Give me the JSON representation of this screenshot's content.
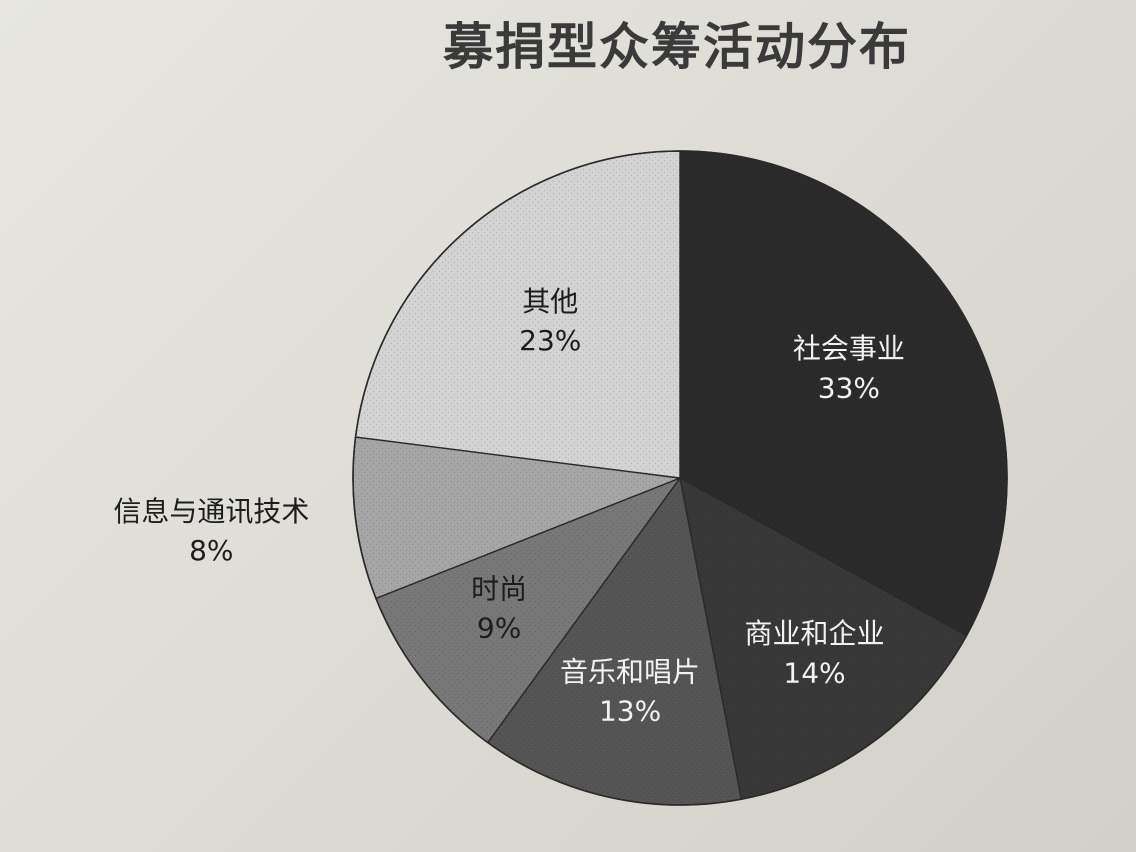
{
  "chart_data": {
    "type": "pie",
    "title": "募捐型众筹活动分布",
    "slices": [
      {
        "label": "社会事业",
        "value": 33,
        "value_label": "33%",
        "color": "#2b2b2b"
      },
      {
        "label": "商业和企业",
        "value": 14,
        "value_label": "14%",
        "color": "#383838"
      },
      {
        "label": "音乐和唱片",
        "value": 13,
        "value_label": "13%",
        "color": "#555555"
      },
      {
        "label": "时尚",
        "value": 9,
        "value_label": "9%",
        "color": "#787878"
      },
      {
        "label": "信息与通讯技术",
        "value": 8,
        "value_label": "8%",
        "color": "#a6a6a6"
      },
      {
        "label": "其他",
        "value": 23,
        "value_label": "23%",
        "color": "#d3d3d3"
      }
    ]
  }
}
